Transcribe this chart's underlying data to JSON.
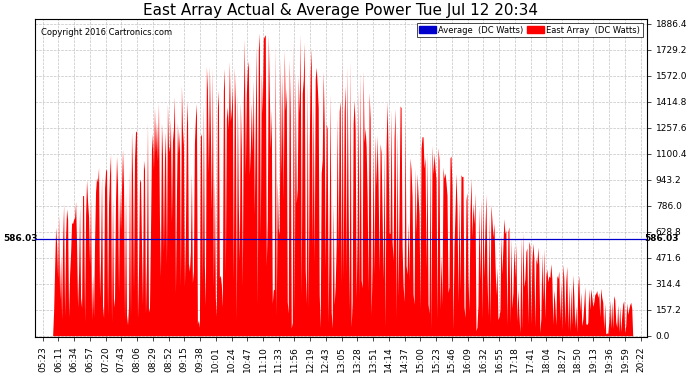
{
  "title": "East Array Actual & Average Power Tue Jul 12 20:34",
  "copyright": "Copyright 2016 Cartronics.com",
  "ymax": 1886.4,
  "ymin": 0.0,
  "ytick_interval": 157.2,
  "hline_value": 586.03,
  "hline_label": "586.03",
  "background_color": "#ffffff",
  "plot_bg_color": "#ffffff",
  "grid_color": "#aaaaaa",
  "area_color": "#ff0000",
  "avg_line_color": "#0000cc",
  "legend_avg_bg": "#0000cc",
  "legend_east_bg": "#ff0000",
  "title_fontsize": 11,
  "tick_fontsize": 6.5,
  "x_labels": [
    "05:23",
    "06:11",
    "06:34",
    "06:57",
    "07:20",
    "07:43",
    "08:06",
    "08:29",
    "08:52",
    "09:15",
    "09:38",
    "10:01",
    "10:24",
    "10:47",
    "11:10",
    "11:33",
    "11:56",
    "12:19",
    "12:43",
    "13:05",
    "13:28",
    "13:51",
    "14:14",
    "14:37",
    "15:00",
    "15:23",
    "15:46",
    "16:09",
    "16:32",
    "16:55",
    "17:18",
    "17:41",
    "18:04",
    "18:27",
    "18:50",
    "19:13",
    "19:36",
    "19:59",
    "20:22"
  ],
  "num_points": 600,
  "figwidth": 6.9,
  "figheight": 3.75,
  "dpi": 100
}
